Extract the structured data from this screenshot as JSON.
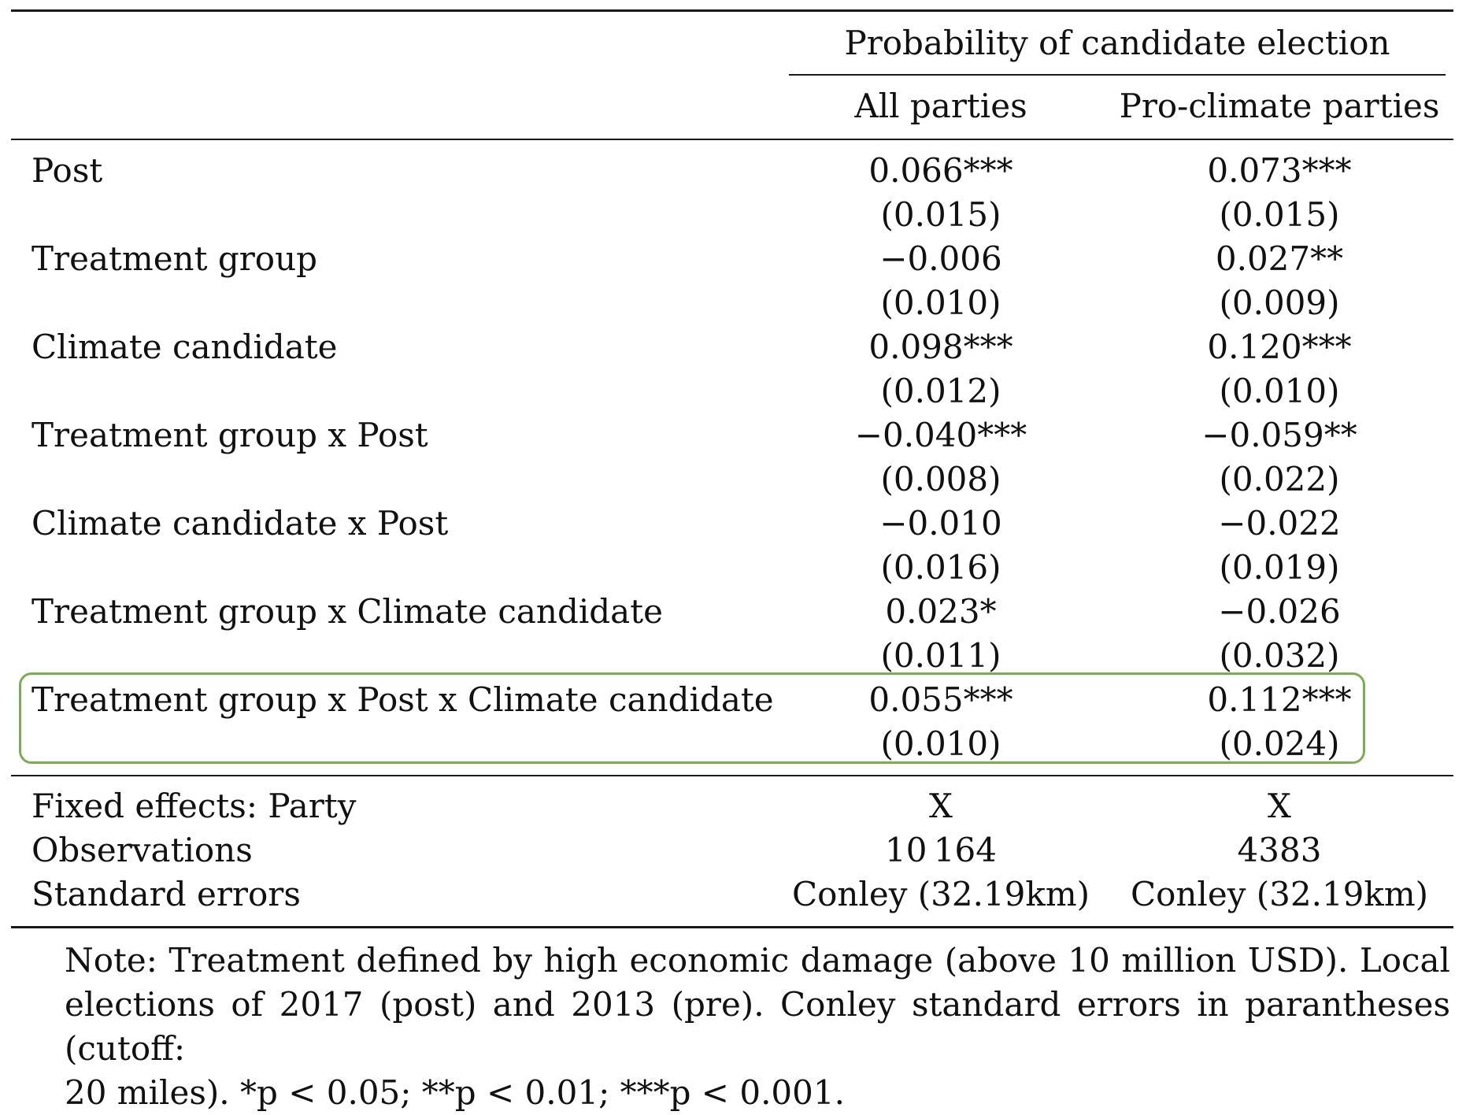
{
  "table": {
    "group_header": "Probability of candidate election",
    "columns": [
      "All parties",
      "Pro-climate parties"
    ],
    "rows": [
      {
        "label": "Post",
        "coef": [
          "0.066***",
          "0.073***"
        ],
        "se": [
          "(0.015)",
          "(0.015)"
        ]
      },
      {
        "label": "Treatment group",
        "coef": [
          "−0.006",
          "0.027**"
        ],
        "se": [
          "(0.010)",
          "(0.009)"
        ]
      },
      {
        "label": "Climate candidate",
        "coef": [
          "0.098***",
          "0.120***"
        ],
        "se": [
          "(0.012)",
          "(0.010)"
        ]
      },
      {
        "label": "Treatment group x Post",
        "coef": [
          "−0.040***",
          "−0.059**"
        ],
        "se": [
          "(0.008)",
          "(0.022)"
        ]
      },
      {
        "label": "Climate candidate x Post",
        "coef": [
          "−0.010",
          "−0.022"
        ],
        "se": [
          "(0.016)",
          "(0.019)"
        ]
      },
      {
        "label": "Treatment group x Climate candidate",
        "coef": [
          "0.023*",
          "−0.026"
        ],
        "se": [
          "(0.011)",
          "(0.032)"
        ]
      },
      {
        "label": "Treatment group x Post x Climate candidate",
        "coef": [
          "0.055***",
          "0.112***"
        ],
        "se": [
          "(0.010)",
          "(0.024)"
        ]
      }
    ],
    "footer_rows": [
      {
        "label": "Fixed effects: Party",
        "values": [
          "X",
          "X"
        ]
      },
      {
        "label": "Observations",
        "values": [
          "10 164",
          "4383"
        ]
      },
      {
        "label": "Standard errors",
        "values": [
          "Conley (32.19km)",
          "Conley (32.19km)"
        ]
      }
    ],
    "note_lines": [
      "Note:  Treatment defined by high economic damage (above 10 million USD). Local",
      "elections of 2017 (post) and 2013 (pre). Conley standard errors in parantheses (cutoff:",
      "20 miles). *p < 0.05; **p < 0.01; ***p < 0.001."
    ],
    "highlight_color": "#7cad53"
  }
}
